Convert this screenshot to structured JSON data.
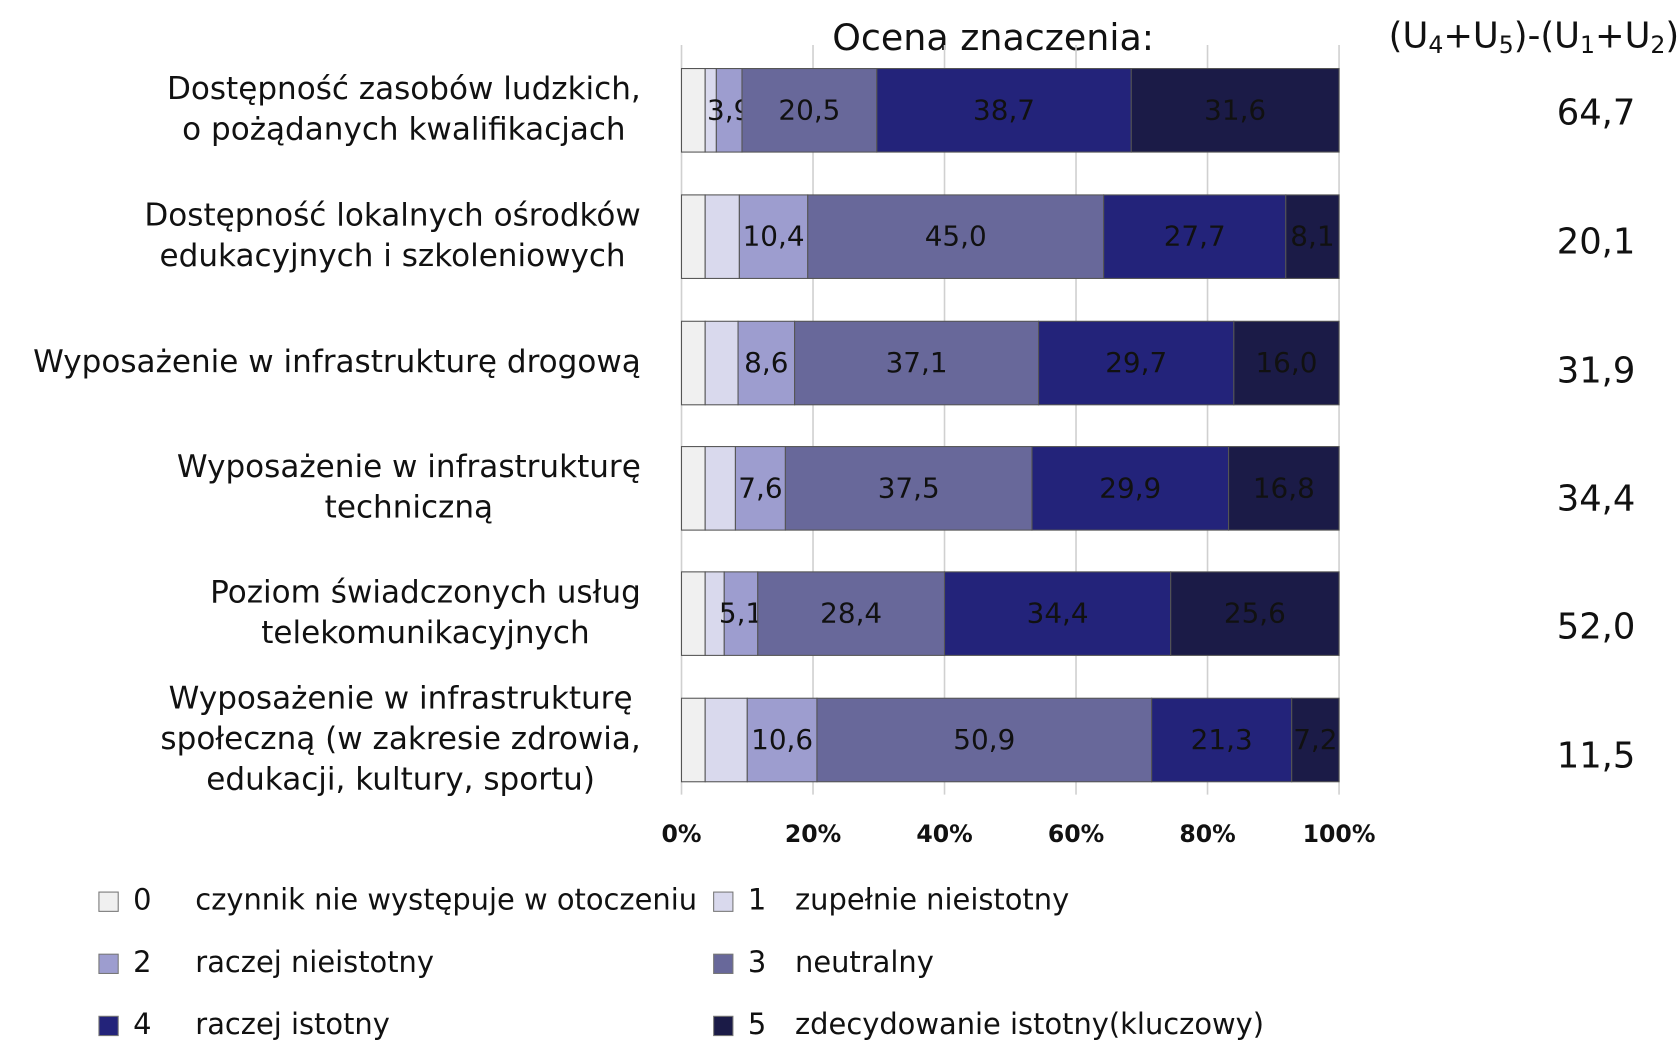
{
  "chart_data": {
    "type": "stacked_barh",
    "title": "Ocena  znaczenia:",
    "categories": [
      "Dostępność zasobów ludzkich,\no pożądanych kwalifikacjach",
      "Dostępność lokalnych ośrodków\nedukacyjnych i szkoleniowych",
      "Wyposażenie w infrastrukturę drogową",
      "Wyposażenie w  infrastrukturę\ntechniczną",
      "Poziom świadczonych usług\ntelekomunikacyjnych",
      "Wyposażenie w infrastrukturę\nspołeczną (w zakresie zdrowia,\nedukacji, kultury, sportu)"
    ],
    "series": [
      {
        "name": "0 czynnik nie występuje w otoczeniu",
        "color": "#f0f0f0",
        "values": [
          3.6,
          3.6,
          3.6,
          3.6,
          3.6,
          3.6
        ]
      },
      {
        "name": "1 zupełnie nieistotny",
        "color": "#d9d9ed",
        "values": [
          1.7,
          5.2,
          5.0,
          4.6,
          2.9,
          6.4
        ]
      },
      {
        "name": "2 raczej nieistotny",
        "color": "#9d9dcf",
        "values": [
          3.9,
          10.4,
          8.6,
          7.6,
          5.1,
          10.6
        ],
        "value_labels": [
          "3,9",
          "10,4",
          "8,6",
          "7,6",
          "5,1",
          "10,6"
        ]
      },
      {
        "name": "3 neutralny",
        "color": "#68689a",
        "values": [
          20.5,
          45.0,
          37.1,
          37.5,
          28.4,
          50.9
        ],
        "value_labels": [
          "20,5",
          "45,0",
          "37,1",
          "37,5",
          "28,4",
          "50,9"
        ]
      },
      {
        "name": "4 raczej istotny",
        "color": "#23237a",
        "values": [
          38.7,
          27.7,
          29.7,
          29.9,
          34.4,
          21.3
        ],
        "value_labels": [
          "38,7",
          "27,7",
          "29,7",
          "29,9",
          "34,4",
          "21,3"
        ]
      },
      {
        "name": "5 zdecydowanie istotny(kluczowy)",
        "color": "#1b1b47",
        "values": [
          31.6,
          8.1,
          16.0,
          16.8,
          25.6,
          7.2
        ],
        "value_labels": [
          "31,6",
          "8,1",
          "16,0",
          "16,8",
          "25,6",
          "7,2"
        ]
      }
    ],
    "xlim": [
      0,
      100
    ],
    "xticks": [
      {
        "value": 0,
        "label": "0%"
      },
      {
        "value": 20,
        "label": "20%"
      },
      {
        "value": 40,
        "label": "40%"
      },
      {
        "value": 60,
        "label": "60%"
      },
      {
        "value": 80,
        "label": "80%"
      },
      {
        "value": 100,
        "label": "100%"
      }
    ],
    "grid": true,
    "difference": {
      "title": "(U4+U5)-(U1+U2)",
      "values": [
        64.7,
        20.1,
        31.9,
        34.4,
        52.0,
        11.5
      ],
      "value_labels": [
        "64,7",
        "20,1",
        "31,9",
        "34,4",
        "52,0",
        "11,5"
      ]
    }
  }
}
